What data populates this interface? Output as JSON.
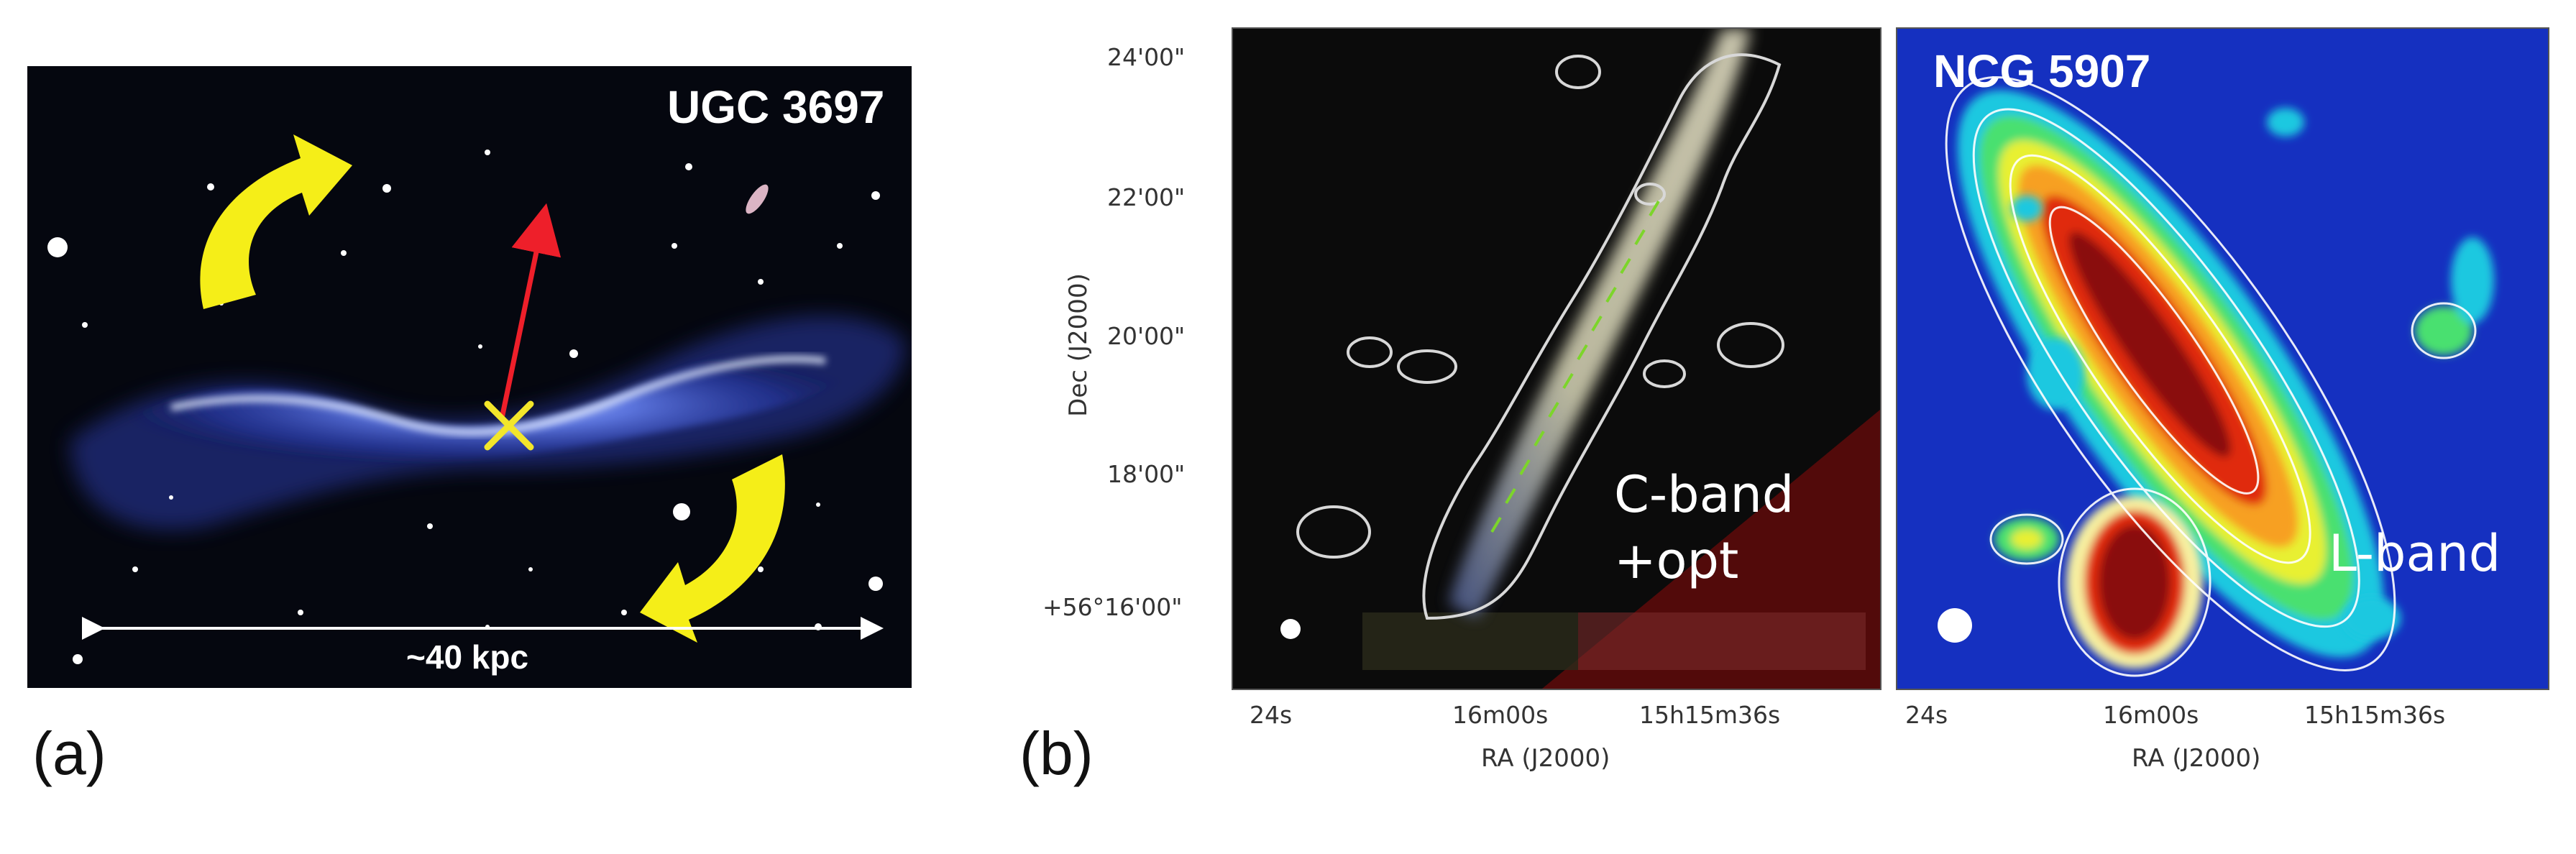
{
  "panel_a": {
    "label": "(a)",
    "galaxy_name": "UGC 3697",
    "scale_bar_text": "~40 kpc",
    "colors": {
      "background": "#05070f",
      "disk": "#4a6bff",
      "arrow_curved": "#f5ee18",
      "arrow_vector": "#ee1f2a",
      "marker": "#f3e62a"
    }
  },
  "panel_b": {
    "label": "(b)",
    "left_map": {
      "band_text_line1": "C-band",
      "band_text_line2": "+opt",
      "dec_ticks": [
        "24'00\"",
        "22'00\"",
        "20'00\"",
        "18'00\"",
        "+56°16'00\""
      ],
      "ra_ticks": [
        "24s",
        "16m00s",
        "15h15m36s"
      ],
      "xlabel": "RA (J2000)",
      "ylabel": "Dec (J2000)"
    },
    "right_map": {
      "galaxy_name": "NCG 5907",
      "band_text": "L-band",
      "ra_ticks": [
        "24s",
        "16m00s",
        "15h15m36s"
      ],
      "xlabel": "RA (J2000)",
      "colors": {
        "background": "#1530c0",
        "contour": "#ffffff"
      }
    }
  }
}
